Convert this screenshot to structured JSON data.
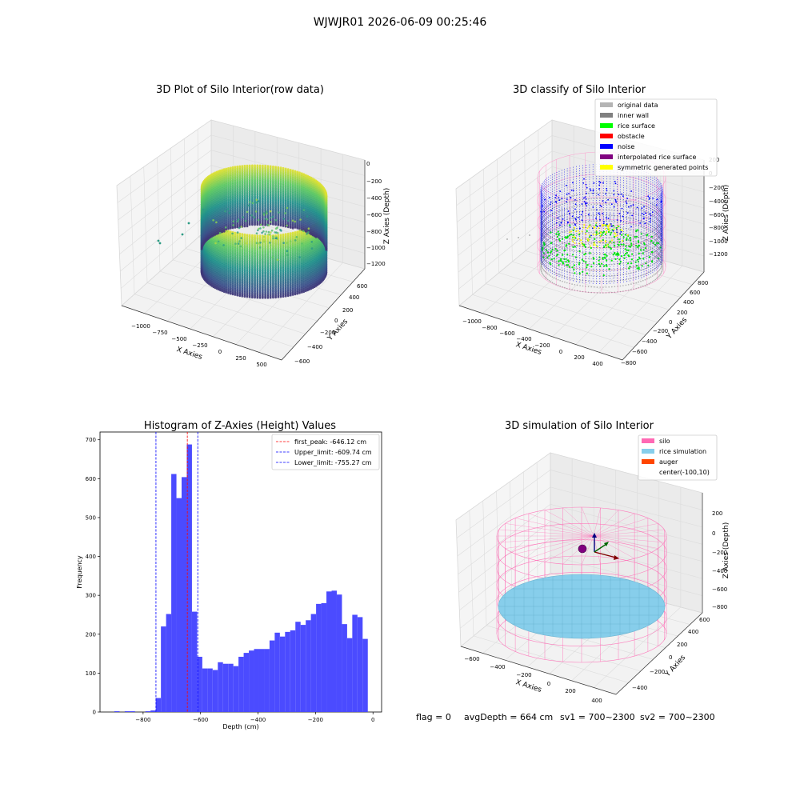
{
  "figure": {
    "suptitle": "WJWJR01 2026-06-09 00:25:46",
    "status": {
      "flag": "flag = 0",
      "avg_depth": "avgDepth = 664 cm",
      "sv1": "sv1 = 700~2300",
      "sv2": "sv2 = 700~2300"
    }
  },
  "chart_data": [
    {
      "type": "scatter",
      "title": "3D Plot of Silo Interior(row data)",
      "xlabel": "X Axies",
      "ylabel": "Y Axies",
      "zlabel": "Z Axies (Depth)",
      "x_ticks": [
        "−1000",
        "−750",
        "−500",
        "−250",
        "0",
        "250",
        "500"
      ],
      "y_ticks": [
        "−600",
        "−400",
        "−200",
        "0",
        "200",
        "400",
        "600"
      ],
      "z_ticks": [
        "0",
        "−200",
        "−400",
        "−600",
        "−800",
        "−1000",
        "−1200"
      ],
      "xlim": [
        -1150,
        550
      ],
      "ylim": [
        -650,
        650
      ],
      "zlim": [
        -1300,
        50
      ],
      "grid": true,
      "colormap": "viridis",
      "silo": {
        "center_x": -100,
        "center_y": 10,
        "radius": 560,
        "wall_top": -200,
        "wall_bottom": -1300
      }
    },
    {
      "type": "scatter",
      "title": "3D classify of Silo Interior",
      "xlabel": "X Axies",
      "ylabel": "Y Axies",
      "zlabel": "Z Axies (Depth)",
      "x_ticks": [
        "−1000",
        "−800",
        "−600",
        "−400",
        "−200",
        "0",
        "200",
        "400"
      ],
      "y_ticks": [
        "−800",
        "−600",
        "−400",
        "−200",
        "0",
        "200",
        "400",
        "600",
        "800"
      ],
      "z_ticks": [
        "200",
        "0",
        "−200",
        "−400",
        "−600",
        "−800",
        "−1000",
        "−1200"
      ],
      "grid": true,
      "legend_position": "upper-right",
      "legend": [
        {
          "label": "original data",
          "color": "#b4b4b4"
        },
        {
          "label": "inner wall",
          "color": "#808080"
        },
        {
          "label": "rice surface",
          "color": "#00ff00"
        },
        {
          "label": "obstacle",
          "color": "#ff0000"
        },
        {
          "label": "noise",
          "color": "#0000ff"
        },
        {
          "label": "interpolated rice surface",
          "color": "#800080"
        },
        {
          "label": "symmetric generated points",
          "color": "#ffff00"
        }
      ]
    },
    {
      "type": "bar",
      "title": "Histogram of Z-Axies (Height) Values",
      "xlabel": "Depth (cm)",
      "ylabel": "Frequency",
      "bar_color": "#4b4bff",
      "xlim": [
        -950,
        30
      ],
      "ylim": [
        0,
        720
      ],
      "x_ticks": [
        -800,
        -600,
        -400,
        -200,
        0
      ],
      "x_tick_labels": [
        "−800",
        "−600",
        "−400",
        "−200",
        "0"
      ],
      "y_ticks": [
        0,
        100,
        200,
        300,
        400,
        500,
        600,
        700
      ],
      "y_tick_labels": [
        "0",
        "100",
        "200",
        "300",
        "400",
        "500",
        "600",
        "700"
      ],
      "bin_start": -900,
      "bin_width": 18,
      "values": [
        2,
        0,
        2,
        2,
        0,
        0,
        2,
        4,
        36,
        220,
        252,
        612,
        550,
        604,
        688,
        258,
        142,
        112,
        112,
        108,
        128,
        124,
        124,
        118,
        142,
        152,
        158,
        162,
        162,
        162,
        184,
        204,
        194,
        206,
        210,
        232,
        224,
        236,
        252,
        278,
        280,
        310,
        312,
        302,
        226,
        190,
        250,
        244,
        188
      ],
      "lines": [
        {
          "label": "first_peak: -646.12 cm",
          "x": -646.12,
          "color": "#ff0000"
        },
        {
          "label": "Upper_limit: -609.74 cm",
          "x": -609.74,
          "color": "#0000ff"
        },
        {
          "label": "Lower_limit: -755.27 cm",
          "x": -755.27,
          "color": "#0000ff"
        }
      ],
      "legend_position": "upper-right"
    },
    {
      "type": "surface",
      "title": "3D simulation of Silo Interior",
      "xlabel": "X Axies",
      "ylabel": "Y Axies",
      "zlabel": "Z Axies (Depth)",
      "x_ticks": [
        "−600",
        "−400",
        "−200",
        "0",
        "200",
        "400"
      ],
      "y_ticks": [
        "−400",
        "−200",
        "0",
        "200",
        "400",
        "600"
      ],
      "z_ticks": [
        "200",
        "0",
        "−200",
        "−400",
        "−600",
        "−800"
      ],
      "grid": true,
      "legend_position": "upper-right",
      "legend": [
        {
          "label": "silo",
          "color": "#ff69b4"
        },
        {
          "label": "rice simulation",
          "color": "#87ceeb"
        },
        {
          "label": "auger",
          "color": "#ff4500"
        },
        {
          "label": "center(-100,10)",
          "color": ""
        }
      ]
    }
  ]
}
